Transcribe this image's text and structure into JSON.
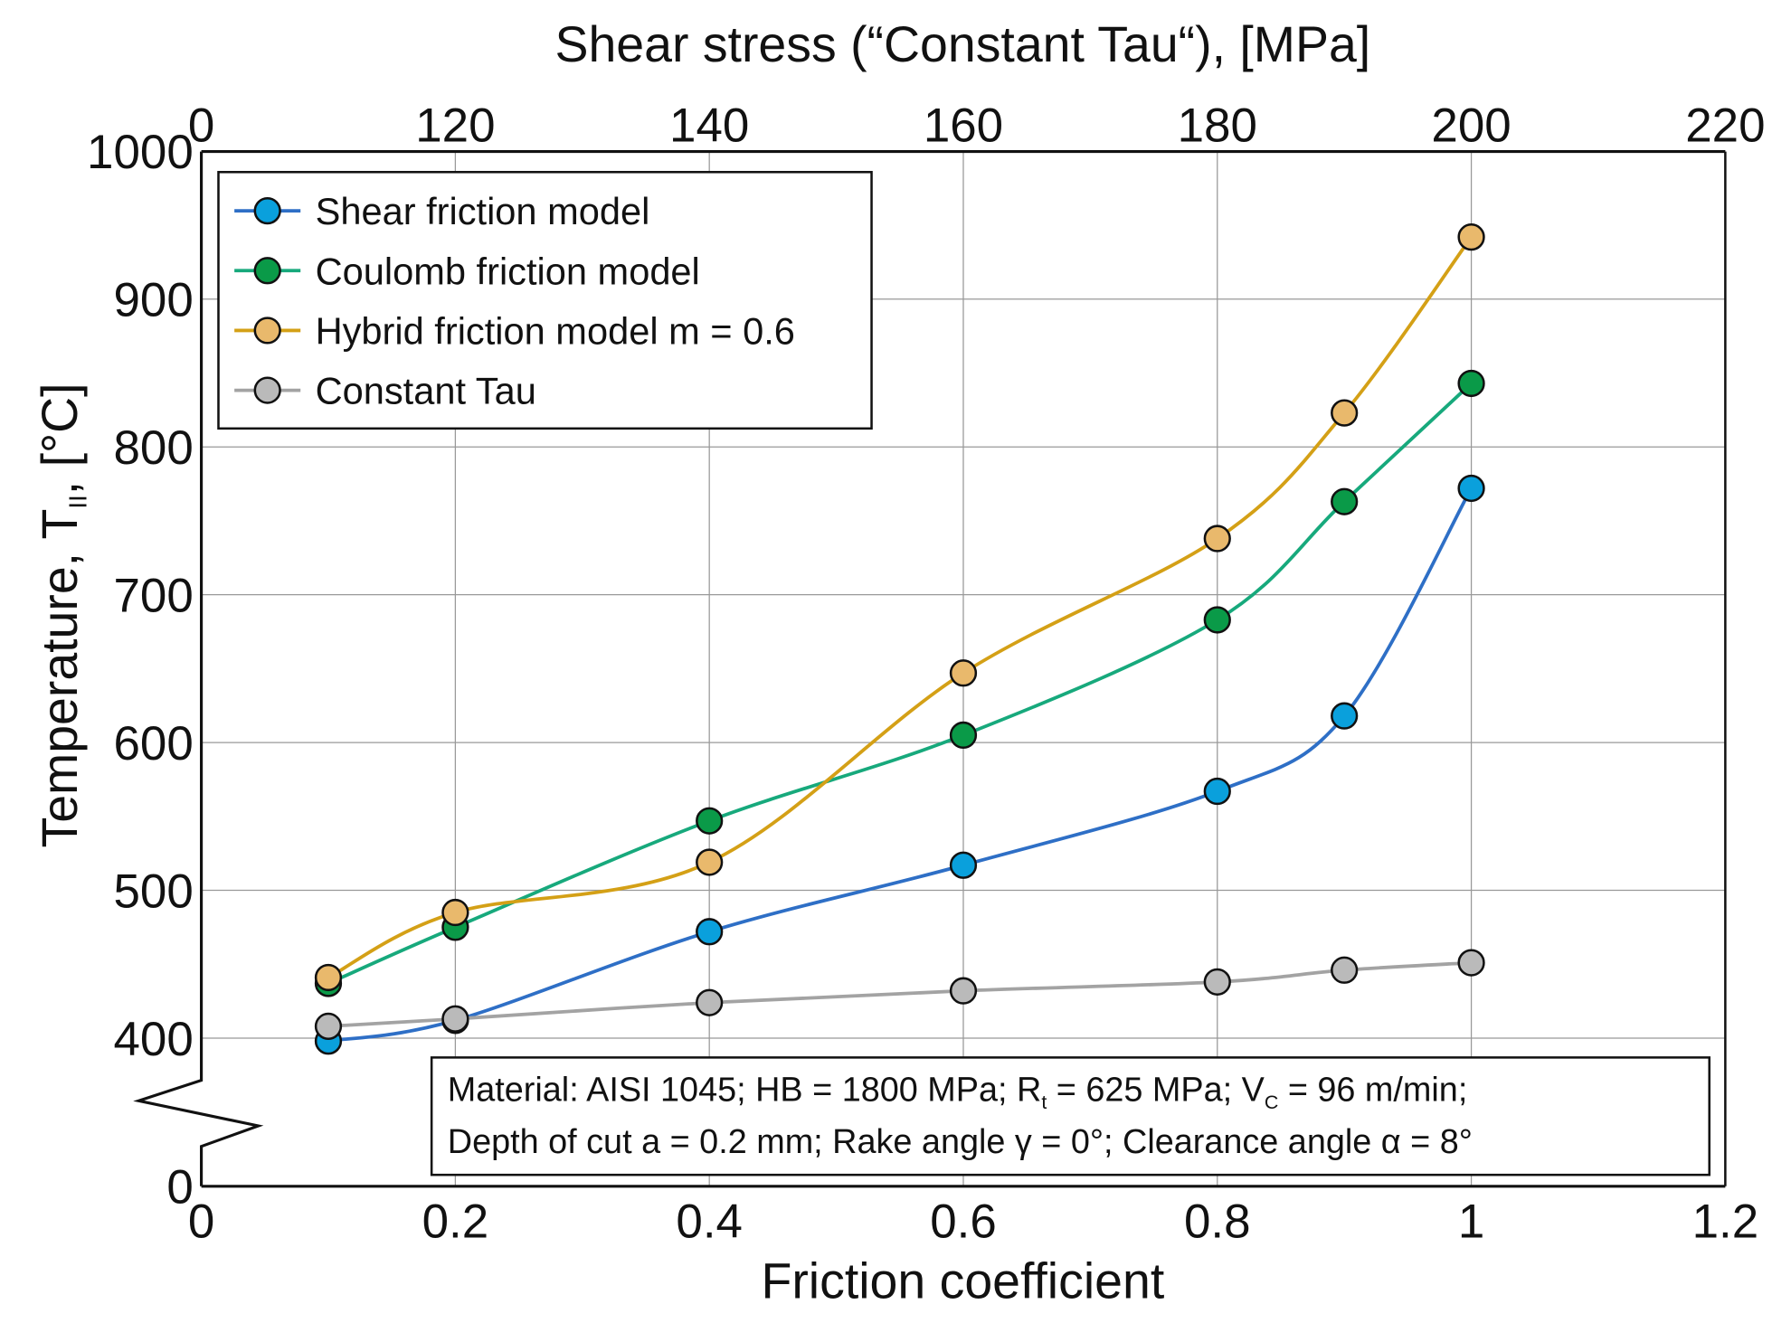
{
  "chart_data": {
    "type": "line",
    "xlabel": "Friction coefficient",
    "x2label": "Shear stress (“Constant Tau“), [MPa]",
    "ylabel": "Temperature, T",
    "ylabel_sub": "II",
    "ylabel_unit": ", [°C]",
    "xlim": [
      0,
      1.2
    ],
    "ylim": [
      0,
      1000
    ],
    "y_break": [
      0,
      400
    ],
    "grid": true,
    "legend_position": "top-left",
    "x_ticks": [
      "0",
      "0.2",
      "0.4",
      "0.6",
      "0.8",
      "1",
      "1.2"
    ],
    "x_tick_values": [
      0,
      0.2,
      0.4,
      0.6,
      0.8,
      1,
      1.2
    ],
    "x2_ticks": [
      "0",
      "120",
      "140",
      "160",
      "180",
      "200",
      "220"
    ],
    "y_ticks": [
      "0",
      "400",
      "500",
      "600",
      "700",
      "800",
      "900",
      "1000"
    ],
    "y_tick_values": [
      0,
      400,
      500,
      600,
      700,
      800,
      900,
      1000
    ],
    "x": [
      0.1,
      0.2,
      0.4,
      0.6,
      0.8,
      0.9,
      1.0
    ],
    "series": [
      {
        "name": "Shear friction model",
        "line_color": "#2e6fc6",
        "marker_color": "#0aa0dc",
        "values": [
          392,
          412,
          472,
          517,
          567,
          618,
          772
        ]
      },
      {
        "name": "Coulomb friction model",
        "line_color": "#17a97c",
        "marker_color": "#0a9a48",
        "values": [
          437,
          475,
          547,
          605,
          683,
          763,
          843
        ]
      },
      {
        "name": "Hybrid friction model  m = 0.6",
        "line_color": "#d4a016",
        "marker_color": "#e9b96c",
        "values": [
          441,
          485,
          519,
          647,
          738,
          823,
          942
        ]
      },
      {
        "name": "Constant Tau",
        "line_color": "#a3a3a3",
        "marker_color": "#bababa",
        "values": [
          408,
          413,
          424,
          432,
          438,
          446,
          451
        ]
      }
    ],
    "annotation": {
      "line1": "Material: AISI 1045; HB = 1800 MPa; R",
      "line1_sub1": "t",
      "line1_mid": " = 625 MPa; V",
      "line1_sub2": "C",
      "line1_end": " = 96 m/min;",
      "line2": "Depth of cut a = 0.2 mm; Rake angle γ = 0°; Clearance angle α = 8°"
    }
  }
}
